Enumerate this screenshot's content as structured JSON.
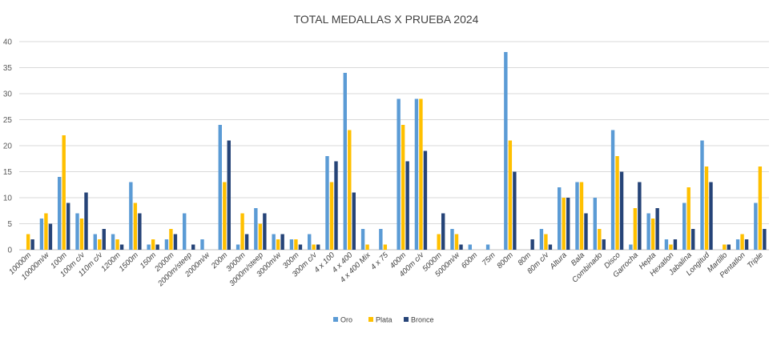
{
  "chart_data": {
    "type": "bar",
    "title": "TOTAL MEDALLAS X PRUEBA 2024",
    "xlabel": "",
    "ylabel": "",
    "ylim": [
      0,
      40
    ],
    "yticks": [
      0,
      5,
      10,
      15,
      20,
      25,
      30,
      35,
      40
    ],
    "grid": true,
    "legend_position": "bottom",
    "categories": [
      "10000m",
      "10000m/w",
      "100m",
      "100m c/v",
      "110m c/v",
      "1200m",
      "1500m",
      "150m",
      "2000m",
      "2000m/steep",
      "2000m/w",
      "200m",
      "3000m",
      "3000m/steep",
      "3000m/w",
      "300m",
      "300m c/v",
      "4 x 100",
      "4 x 400",
      "4 x 400 Mix",
      "4 x 75",
      "400m",
      "400m c/v",
      "5000m",
      "5000m/w",
      "600m",
      "75m",
      "800m",
      "80m",
      "80m c/v",
      "Altura",
      "Bala",
      "Combinado",
      "Disco",
      "Garrocha",
      "Hepta",
      "Hexatlon",
      "Jabalina",
      "Longitud",
      "Martillo",
      "Pentatlon",
      "Triple"
    ],
    "series": [
      {
        "name": "Oro",
        "color": "#5b9bd5",
        "values": [
          0,
          6,
          14,
          7,
          3,
          3,
          13,
          1,
          2,
          7,
          2,
          24,
          1,
          8,
          3,
          2,
          3,
          18,
          34,
          4,
          4,
          29,
          29,
          0,
          4,
          1,
          1,
          38,
          0,
          4,
          12,
          13,
          10,
          23,
          1,
          7,
          2,
          9,
          21,
          0,
          2,
          9
        ]
      },
      {
        "name": "Plata",
        "color": "#ffc000",
        "values": [
          3,
          7,
          22,
          6,
          2,
          2,
          9,
          2,
          4,
          0,
          0,
          13,
          7,
          5,
          2,
          2,
          1,
          13,
          23,
          1,
          1,
          24,
          29,
          3,
          3,
          0,
          0,
          21,
          0,
          3,
          10,
          13,
          4,
          18,
          8,
          6,
          1,
          12,
          16,
          1,
          3,
          16
        ]
      },
      {
        "name": "Bronce",
        "color": "#264478",
        "values": [
          2,
          5,
          9,
          11,
          4,
          1,
          7,
          1,
          3,
          1,
          0,
          21,
          3,
          7,
          3,
          1,
          1,
          17,
          11,
          0,
          0,
          17,
          19,
          7,
          1,
          0,
          0,
          15,
          2,
          1,
          10,
          7,
          2,
          15,
          13,
          8,
          2,
          4,
          13,
          1,
          2,
          4
        ]
      }
    ]
  }
}
